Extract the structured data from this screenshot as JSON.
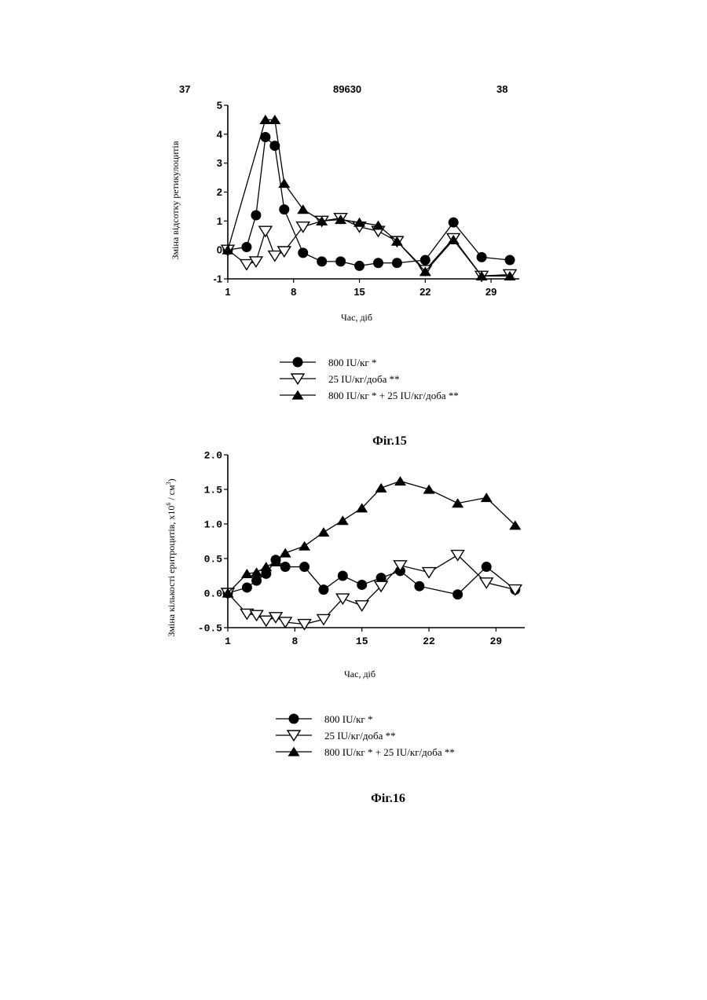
{
  "header": {
    "page_left": "37",
    "patent_number": "89630",
    "page_right": "38"
  },
  "colors": {
    "ink": "#000000",
    "paper": "#ffffff"
  },
  "chart_data": [
    {
      "type": "line",
      "caption": "Фіг.15",
      "xlabel": "Час, діб",
      "ylabel": "Зміна відсотку ретикулоцитів",
      "xlim": [
        1,
        32
      ],
      "ylim": [
        -1,
        5
      ],
      "x_ticks": [
        1,
        8,
        15,
        22,
        29
      ],
      "y_ticks": [
        -1,
        0,
        1,
        2,
        3,
        4,
        5
      ],
      "x_tick_labels": [
        "1",
        "8",
        "15",
        "22",
        "29"
      ],
      "y_tick_labels": [
        "-1",
        "0",
        "1",
        "2",
        "3",
        "4",
        "5"
      ],
      "legend_position": "bottom",
      "series": [
        {
          "name": "800 IU/кг *",
          "marker": "circle-filled",
          "x": [
            1,
            3,
            4,
            5,
            6,
            7,
            9,
            11,
            13,
            15,
            17,
            19,
            22,
            25,
            28,
            31
          ],
          "y": [
            0,
            0.1,
            1.2,
            3.9,
            3.6,
            1.4,
            -0.1,
            -0.4,
            -0.4,
            -0.55,
            -0.45,
            -0.45,
            -0.35,
            0.95,
            -0.25,
            -0.35
          ]
        },
        {
          "name": "25 IU/кг/доба **",
          "marker": "triangle-down-open",
          "x": [
            1,
            3,
            4,
            5,
            6,
            7,
            9,
            11,
            13,
            15,
            17,
            19,
            22,
            25,
            28,
            31
          ],
          "y": [
            0,
            -0.5,
            -0.4,
            0.65,
            -0.2,
            -0.05,
            0.8,
            1.0,
            1.1,
            0.8,
            0.65,
            0.3,
            -0.7,
            0.4,
            -0.9,
            -0.85
          ]
        },
        {
          "name": "800 IU/кг * + 25 IU/кг/доба **",
          "marker": "triangle-up-filled",
          "x": [
            1,
            5,
            6,
            7,
            9,
            11,
            13,
            15,
            17,
            19,
            22,
            25,
            28,
            31
          ],
          "y": [
            0,
            4.5,
            4.5,
            2.3,
            1.4,
            1.0,
            1.05,
            0.95,
            0.85,
            0.3,
            -0.75,
            0.35,
            -0.9,
            -0.9
          ]
        }
      ]
    },
    {
      "type": "line",
      "caption": "Фіг.16",
      "xlabel": "Час, діб",
      "ylabel": "Зміна кількості еритроцитів, x10",
      "ylabel_sup1": "6",
      "ylabel_mid": " / см",
      "ylabel_sup2": "3",
      "ylabel_end": ")",
      "xlim": [
        1,
        32
      ],
      "ylim": [
        -0.5,
        2.0
      ],
      "x_ticks": [
        1,
        8,
        15,
        22,
        29
      ],
      "y_ticks": [
        -0.5,
        0,
        0.5,
        1.0,
        1.5,
        2.0
      ],
      "x_tick_labels": [
        "1",
        "8",
        "15",
        "22",
        "29"
      ],
      "y_tick_labels": [
        "-0.5",
        "0.0",
        "0.5",
        "1.0",
        "1.5",
        "2.0"
      ],
      "legend_position": "bottom",
      "series": [
        {
          "name": "800 IU/кг *",
          "marker": "circle-filled",
          "x": [
            1,
            3,
            4,
            5,
            6,
            7,
            9,
            11,
            13,
            15,
            17,
            19,
            21,
            25,
            28,
            31
          ],
          "y": [
            0,
            0.08,
            0.18,
            0.28,
            0.48,
            0.38,
            0.38,
            0.05,
            0.25,
            0.12,
            0.22,
            0.32,
            0.1,
            -0.02,
            0.38,
            0.05
          ]
        },
        {
          "name": "25 IU/кг/доба **",
          "marker": "triangle-down-open",
          "x": [
            1,
            3,
            4,
            5,
            6,
            7,
            9,
            11,
            13,
            15,
            17,
            19,
            22,
            25,
            28,
            31
          ],
          "y": [
            0,
            -0.3,
            -0.32,
            -0.4,
            -0.35,
            -0.42,
            -0.45,
            -0.38,
            -0.08,
            -0.18,
            0.1,
            0.4,
            0.3,
            0.55,
            0.15,
            0.05
          ]
        },
        {
          "name": "800 IU/кг * + 25 IU/кг/доба **",
          "marker": "triangle-up-filled",
          "x": [
            1,
            3,
            4,
            5,
            6,
            7,
            9,
            11,
            13,
            15,
            17,
            19,
            22,
            25,
            28,
            31
          ],
          "y": [
            0,
            0.28,
            0.3,
            0.38,
            0.45,
            0.58,
            0.68,
            0.88,
            1.05,
            1.23,
            1.52,
            1.62,
            1.5,
            1.3,
            1.38,
            0.98
          ]
        }
      ]
    }
  ]
}
